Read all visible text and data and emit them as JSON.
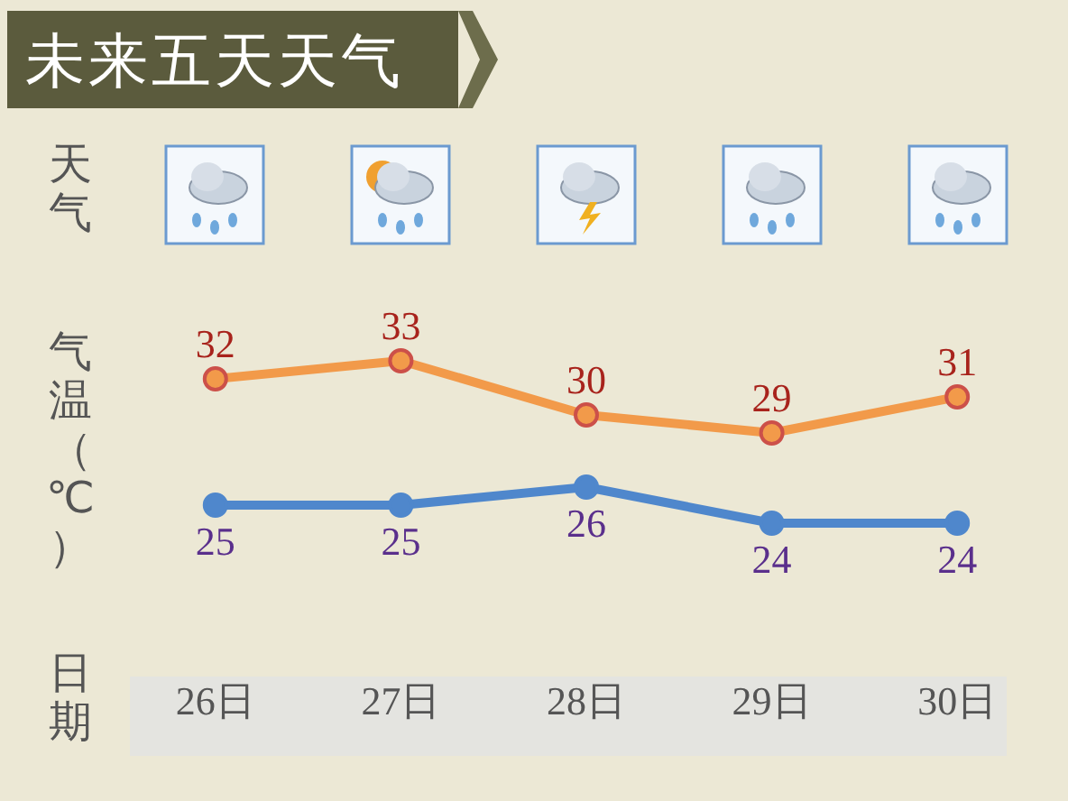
{
  "chart_data": {
    "type": "line",
    "title": "未来五天天气",
    "ylabel": "气温（℃）",
    "xlabel": "日期",
    "annotations": [
      "天气"
    ],
    "categories": [
      "26日",
      "27日",
      "28日",
      "29日",
      "30日"
    ],
    "series": [
      {
        "color": "#f29a4a",
        "values": [
          32,
          33,
          30,
          29,
          31
        ]
      },
      {
        "color": "#4f87cc",
        "values": [
          25,
          25,
          26,
          24,
          24
        ]
      }
    ],
    "marker": "circle",
    "data_labels": true,
    "grid": false,
    "legend": false
  }
}
